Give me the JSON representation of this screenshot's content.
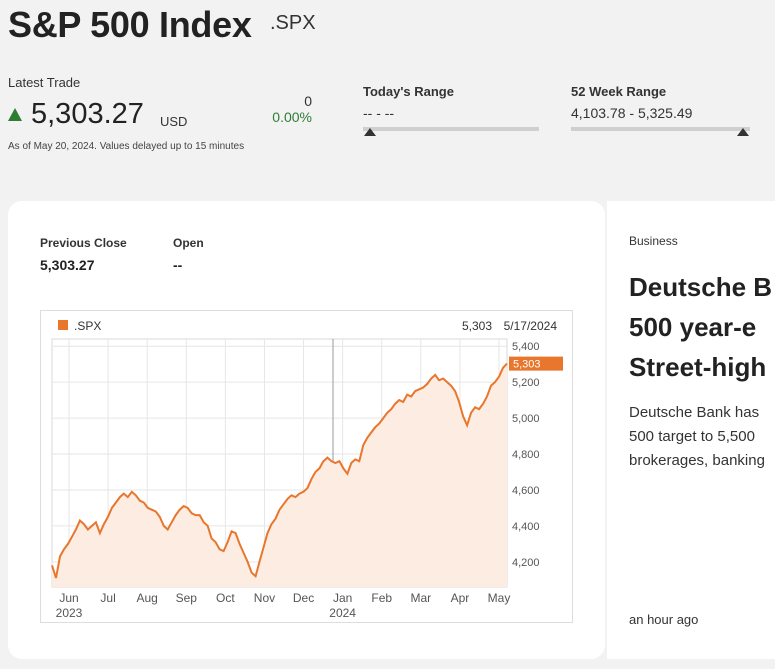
{
  "header": {
    "title": "S&P 500 Index",
    "ric": ".SPX",
    "latest_trade_label": "Latest Trade",
    "price": "5,303.27",
    "currency": "USD",
    "change": "0",
    "change_pct": "0.00%",
    "as_of": "As of May 20, 2024. Values delayed up to 15 minutes",
    "todays_range_label": "Today's Range",
    "todays_range_value": "-- - --",
    "week52_label": "52 Week Range",
    "week52_value": "4,103.78 - 5,325.49"
  },
  "stats": {
    "previous_close_label": "Previous Close",
    "previous_close_value": "5,303.27",
    "open_label": "Open",
    "open_value": "--"
  },
  "chart_data": {
    "type": "area",
    "legend": ".SPX",
    "last_value_label": "5,303",
    "last_date_label": "5/17/2024",
    "y_ticks": [
      "5,400",
      "5,200",
      "5,000",
      "4,800",
      "4,600",
      "4,400",
      "4,200"
    ],
    "y_tick_values": [
      5400,
      5200,
      5000,
      4800,
      4600,
      4400,
      4200
    ],
    "ylim": [
      4060,
      5440
    ],
    "x_tick_labels": [
      "Jun",
      "Jul",
      "Aug",
      "Sep",
      "Oct",
      "Nov",
      "Dec",
      "Jan",
      "Feb",
      "Mar",
      "Apr",
      "May"
    ],
    "year_labels": [
      "2023",
      "2024"
    ],
    "grid": true,
    "color": "#e8762c",
    "series": [
      {
        "values": [
          4180,
          4110,
          4230,
          4270,
          4300,
          4340,
          4380,
          4430,
          4410,
          4380,
          4400,
          4420,
          4360,
          4410,
          4450,
          4500,
          4530,
          4560,
          4580,
          4560,
          4590,
          4570,
          4540,
          4530,
          4500,
          4490,
          4480,
          4450,
          4400,
          4380,
          4420,
          4460,
          4490,
          4510,
          4500,
          4470,
          4460,
          4460,
          4420,
          4400,
          4330,
          4310,
          4270,
          4260,
          4310,
          4370,
          4360,
          4300,
          4250,
          4200,
          4140,
          4120,
          4200,
          4280,
          4360,
          4410,
          4440,
          4490,
          4520,
          4550,
          4570,
          4560,
          4580,
          4590,
          4610,
          4660,
          4700,
          4720,
          4760,
          4780,
          4760,
          4750,
          4760,
          4720,
          4690,
          4750,
          4770,
          4760,
          4850,
          4890,
          4920,
          4950,
          4970,
          5000,
          5030,
          5050,
          5080,
          5100,
          5090,
          5130,
          5120,
          5150,
          5160,
          5170,
          5190,
          5220,
          5240,
          5210,
          5220,
          5200,
          5180,
          5150,
          5090,
          5010,
          4960,
          5030,
          5060,
          5050,
          5080,
          5120,
          5180,
          5200,
          5230,
          5280,
          5303
        ]
      }
    ]
  }
}
